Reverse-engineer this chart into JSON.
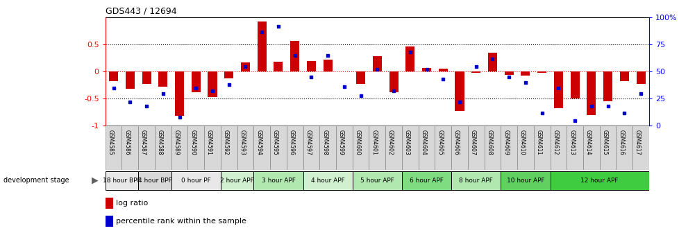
{
  "title": "GDS443 / 12694",
  "samples": [
    "GSM4585",
    "GSM4586",
    "GSM4587",
    "GSM4588",
    "GSM4589",
    "GSM4590",
    "GSM4591",
    "GSM4592",
    "GSM4593",
    "GSM4594",
    "GSM4595",
    "GSM4596",
    "GSM4597",
    "GSM4598",
    "GSM4599",
    "GSM4600",
    "GSM4601",
    "GSM4602",
    "GSM4603",
    "GSM4604",
    "GSM4605",
    "GSM4606",
    "GSM4607",
    "GSM4608",
    "GSM4609",
    "GSM4610",
    "GSM4611",
    "GSM4612",
    "GSM4613",
    "GSM4614",
    "GSM4615",
    "GSM4616",
    "GSM4617"
  ],
  "log_ratio": [
    -0.18,
    -0.32,
    -0.22,
    -0.28,
    -0.82,
    -0.38,
    -0.47,
    -0.13,
    0.17,
    0.92,
    0.18,
    0.57,
    0.2,
    0.22,
    0.0,
    -0.22,
    0.28,
    -0.38,
    0.46,
    0.07,
    0.05,
    -0.72,
    -0.02,
    0.35,
    -0.06,
    -0.07,
    -0.02,
    -0.68,
    -0.5,
    -0.8,
    -0.55,
    -0.18,
    -0.22
  ],
  "percentile": [
    35,
    22,
    18,
    30,
    8,
    35,
    32,
    38,
    55,
    87,
    92,
    65,
    45,
    65,
    36,
    28,
    52,
    32,
    68,
    52,
    43,
    22,
    55,
    62,
    45,
    40,
    12,
    35,
    5,
    18,
    18,
    12,
    30
  ],
  "stage_groups": [
    {
      "label": "18 hour BPF",
      "start": 0,
      "end": 2,
      "color": "#e8e8e8"
    },
    {
      "label": "4 hour BPF",
      "start": 2,
      "end": 4,
      "color": "#d8d8d8"
    },
    {
      "label": "0 hour PF",
      "start": 4,
      "end": 7,
      "color": "#e8e8e8"
    },
    {
      "label": "2 hour APF",
      "start": 7,
      "end": 9,
      "color": "#d0f0d0"
    },
    {
      "label": "3 hour APF",
      "start": 9,
      "end": 12,
      "color": "#b0e8b0"
    },
    {
      "label": "4 hour APF",
      "start": 12,
      "end": 15,
      "color": "#d0f0d0"
    },
    {
      "label": "5 hour APF",
      "start": 15,
      "end": 18,
      "color": "#b0e8b0"
    },
    {
      "label": "6 hour APF",
      "start": 18,
      "end": 21,
      "color": "#80dc80"
    },
    {
      "label": "8 hour APF",
      "start": 21,
      "end": 24,
      "color": "#b0e8b0"
    },
    {
      "label": "10 hour APF",
      "start": 24,
      "end": 27,
      "color": "#60d060"
    },
    {
      "label": "12 hour APF",
      "start": 27,
      "end": 33,
      "color": "#40cc40"
    }
  ],
  "bar_color": "#cc0000",
  "dot_color": "#0000cc",
  "ylim": [
    -1.0,
    1.0
  ],
  "yticks_left": [
    -1.0,
    -0.5,
    0.0,
    0.5
  ],
  "ytick_labels_left": [
    "-1",
    "-0.5",
    "0",
    "0.5"
  ],
  "yticks_right": [
    0,
    25,
    50,
    75,
    100
  ],
  "ytick_labels_right": [
    "0",
    "25",
    "50",
    "75",
    "100%"
  ],
  "sample_box_color": "#d8d8d8",
  "sample_box_edge": "#888888"
}
